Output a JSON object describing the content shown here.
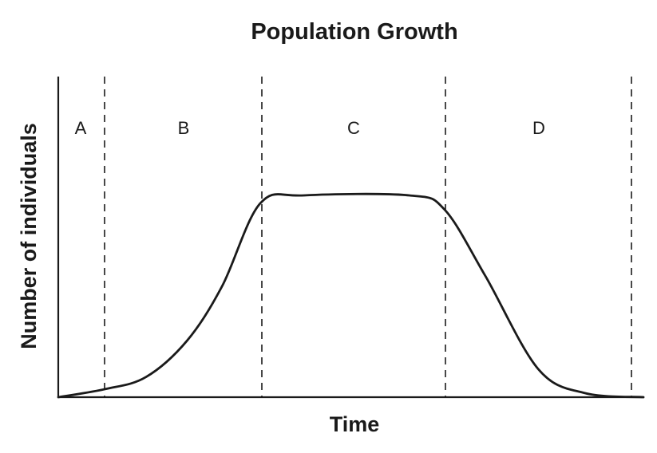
{
  "chart_data": {
    "type": "line",
    "title": "Population Growth",
    "xlabel": "Time",
    "ylabel": "Number of individuals",
    "x_ticks_shown": false,
    "y_ticks_shown": false,
    "grid": false,
    "legend": "none",
    "phases": [
      {
        "label": "A"
      },
      {
        "label": "B"
      },
      {
        "label": "C"
      },
      {
        "label": "D"
      }
    ],
    "series": [
      {
        "points": [
          [
            0.0,
            0.0
          ],
          [
            0.08,
            0.04
          ],
          [
            0.15,
            0.1
          ],
          [
            0.22,
            0.28
          ],
          [
            0.28,
            0.55
          ],
          [
            0.345,
            0.96
          ],
          [
            0.42,
            1.0
          ],
          [
            0.6,
            1.0
          ],
          [
            0.66,
            0.93
          ],
          [
            0.73,
            0.6
          ],
          [
            0.82,
            0.14
          ],
          [
            0.9,
            0.02
          ],
          [
            1.0,
            0.0
          ]
        ]
      }
    ]
  }
}
